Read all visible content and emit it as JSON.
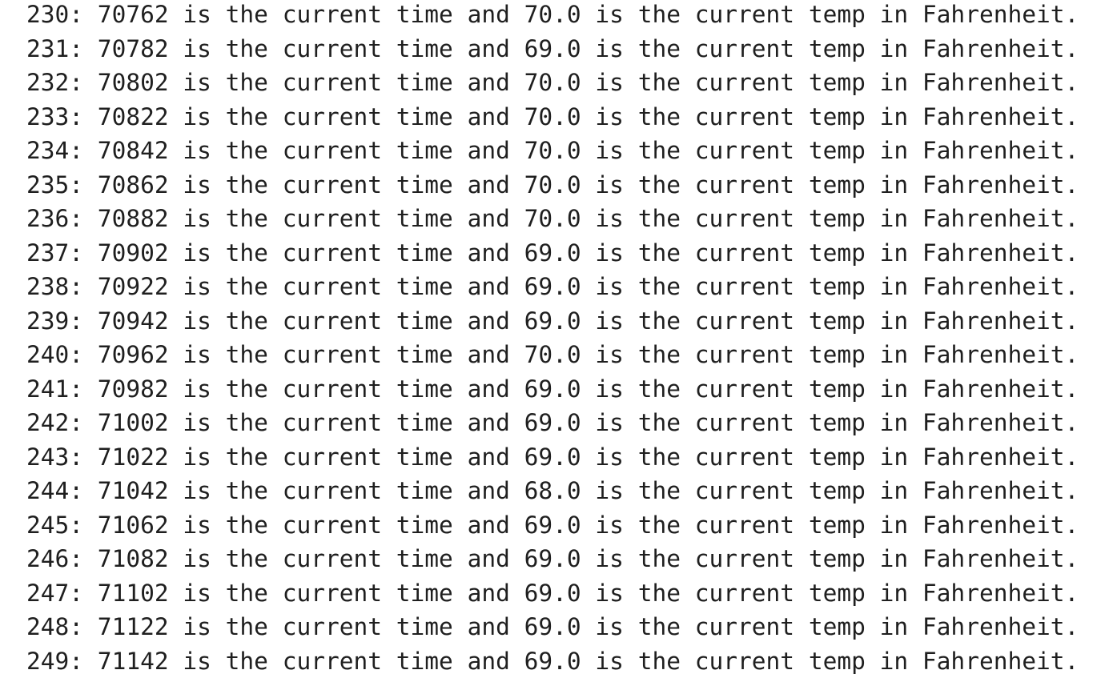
{
  "lines": [
    "230: 70762 is the current time and 70.0 is the current temp in Fahrenheit.",
    "231: 70782 is the current time and 69.0 is the current temp in Fahrenheit.",
    "232: 70802 is the current time and 70.0 is the current temp in Fahrenheit.",
    "233: 70822 is the current time and 70.0 is the current temp in Fahrenheit.",
    "234: 70842 is the current time and 70.0 is the current temp in Fahrenheit.",
    "235: 70862 is the current time and 70.0 is the current temp in Fahrenheit.",
    "236: 70882 is the current time and 70.0 is the current temp in Fahrenheit.",
    "237: 70902 is the current time and 69.0 is the current temp in Fahrenheit.",
    "238: 70922 is the current time and 69.0 is the current temp in Fahrenheit.",
    "239: 70942 is the current time and 69.0 is the current temp in Fahrenheit.",
    "240: 70962 is the current time and 70.0 is the current temp in Fahrenheit.",
    "241: 70982 is the current time and 69.0 is the current temp in Fahrenheit.",
    "242: 71002 is the current time and 69.0 is the current temp in Fahrenheit.",
    "243: 71022 is the current time and 69.0 is the current temp in Fahrenheit.",
    "244: 71042 is the current time and 68.0 is the current temp in Fahrenheit.",
    "245: 71062 is the current time and 69.0 is the current temp in Fahrenheit.",
    "246: 71082 is the current time and 69.0 is the current temp in Fahrenheit.",
    "247: 71102 is the current time and 69.0 is the current temp in Fahrenheit.",
    "248: 71122 is the current time and 69.0 is the current temp in Fahrenheit.",
    "249: 71142 is the current time and 69.0 is the current temp in Fahrenheit."
  ]
}
